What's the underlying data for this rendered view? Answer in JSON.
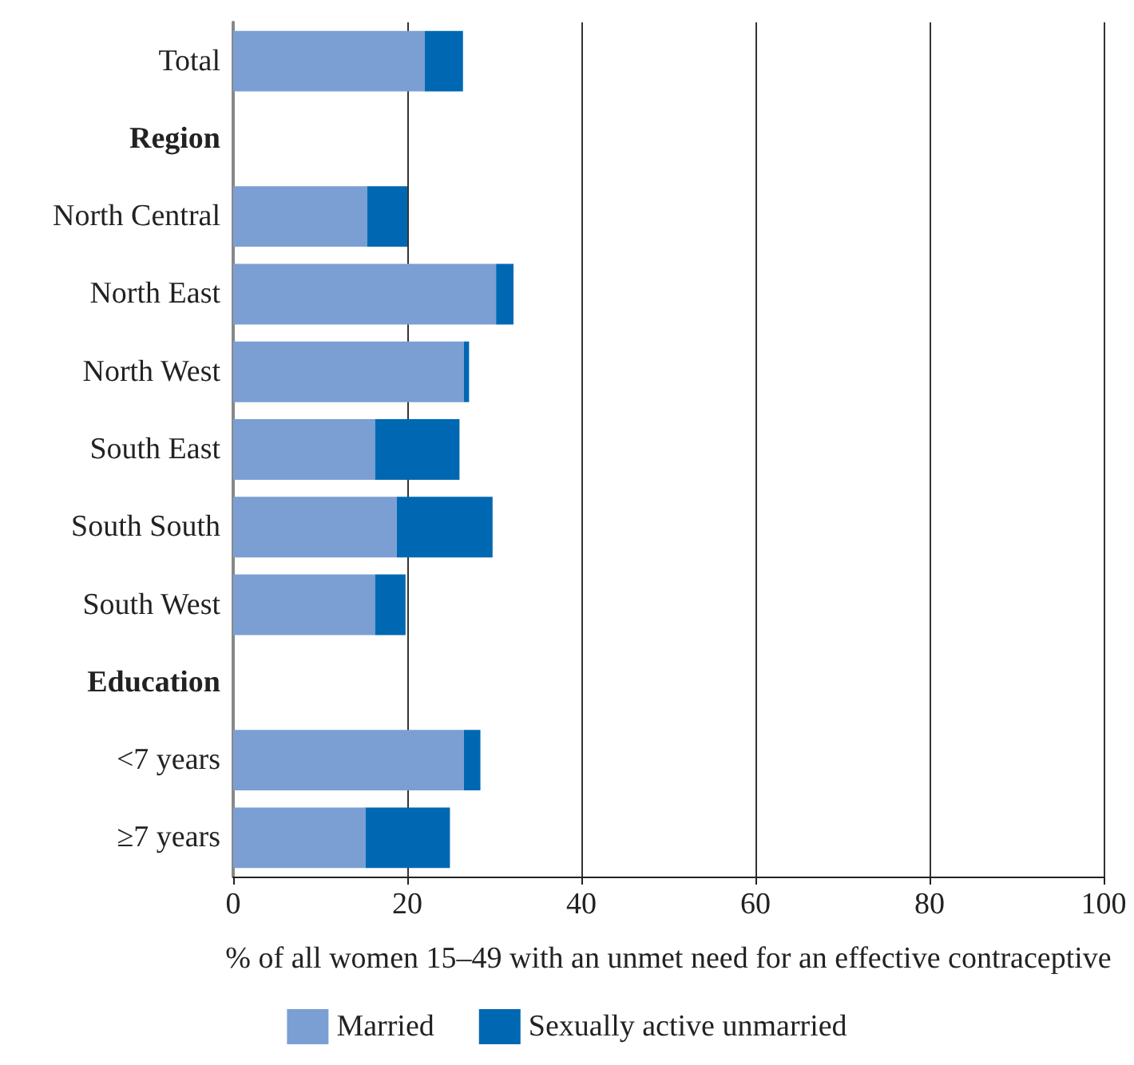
{
  "chart_data": {
    "type": "bar",
    "orientation": "horizontal",
    "stacked": true,
    "categories": [
      "Total",
      "Region",
      "North Central",
      "North East",
      "North West",
      "South East",
      "South South",
      "South West",
      "Education",
      "<7 years",
      "≥7 years"
    ],
    "series": [
      {
        "name": "Married",
        "color": "#7b9fd2",
        "values": [
          22.0,
          null,
          15.4,
          30.2,
          26.5,
          16.3,
          18.8,
          16.3,
          null,
          26.5,
          15.2
        ]
      },
      {
        "name": "Sexually active unmarried",
        "color": "#0068b3",
        "values": [
          4.4,
          null,
          4.6,
          2.0,
          0.6,
          9.7,
          11.0,
          3.5,
          null,
          1.9,
          9.7
        ]
      }
    ],
    "xlabel": "% of all women 15–49 with an unmet need for an effective contraceptive",
    "xlim": [
      0,
      100
    ],
    "xticks": [
      0,
      20,
      40,
      60,
      80,
      100
    ],
    "grid": "x",
    "legend": "bottom"
  }
}
